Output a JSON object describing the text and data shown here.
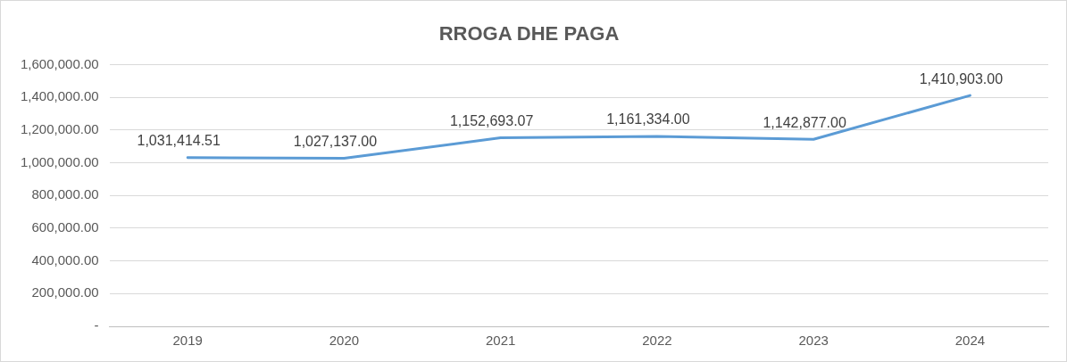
{
  "chart_data": {
    "type": "line",
    "title": "RROGA DHE PAGA",
    "categories": [
      "2019",
      "2020",
      "2021",
      "2022",
      "2023",
      "2024"
    ],
    "series": [
      {
        "color": "#5b9bd5",
        "values": [
          1031414.51,
          1027137.0,
          1152693.07,
          1161334.0,
          1142877.0,
          1410903.0
        ]
      }
    ],
    "value_labels": [
      "1,031,414.51",
      "1,027,137.00",
      "1,152,693.07",
      "1,161,334.00",
      "1,142,877.00",
      "1,410,903.00"
    ],
    "ylim": [
      0,
      1600000
    ],
    "yticks": [
      {
        "value": 0,
        "label": "-"
      },
      {
        "value": 200000,
        "label": "200,000.00"
      },
      {
        "value": 400000,
        "label": "400,000.00"
      },
      {
        "value": 600000,
        "label": "600,000.00"
      },
      {
        "value": 800000,
        "label": "800,000.00"
      },
      {
        "value": 1000000,
        "label": "1,000,000.00"
      },
      {
        "value": 1200000,
        "label": "1,200,000.00"
      },
      {
        "value": 1400000,
        "label": "1,400,000.00"
      },
      {
        "value": 1600000,
        "label": "1,600,000.00"
      }
    ],
    "grid": "y",
    "legend": false,
    "marker": "none",
    "line_style": "solid"
  }
}
